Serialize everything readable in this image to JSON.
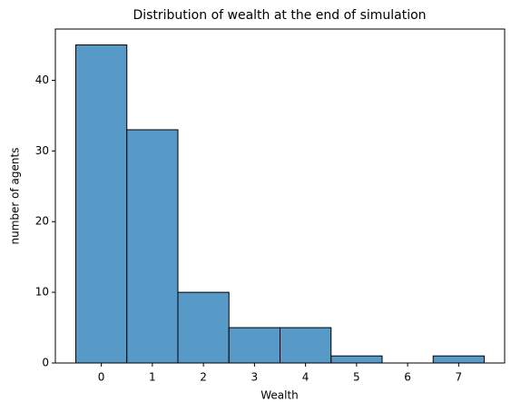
{
  "chart_data": {
    "type": "histogram",
    "title": "Distribution of wealth at the end of simulation",
    "x_label": "Wealth",
    "y_label": "number of agents",
    "bins": [
      -0.5,
      0.5,
      1.5,
      2.5,
      3.5,
      4.5,
      5.5,
      6.5,
      7.5
    ],
    "values": [
      45,
      33,
      10,
      5,
      5,
      1,
      0,
      1
    ],
    "color": "#5799c7",
    "xlim": [
      -0.9,
      7.9
    ],
    "xticks": [
      0,
      1,
      2,
      3,
      4,
      5,
      6,
      7
    ],
    "ylim": [
      0,
      47.25
    ],
    "yticks": [
      0,
      10,
      20,
      30,
      40
    ]
  }
}
